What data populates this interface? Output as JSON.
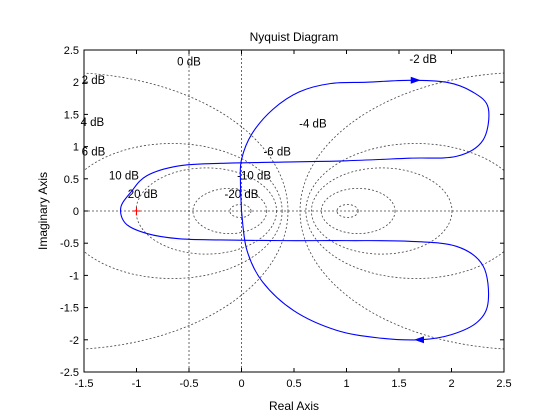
{
  "chart_data": {
    "type": "line",
    "title": "Nyquist Diagram",
    "xlabel": "Real Axis",
    "ylabel": "Imaginary Axis",
    "xlim": [
      -1.5,
      2.5
    ],
    "ylim": [
      -2.5,
      2.5
    ],
    "xticks": [
      "-1.5",
      "-1",
      "-0.5",
      "0",
      "0.5",
      "1",
      "1.5",
      "2",
      "2.5"
    ],
    "yticks": [
      "2.5",
      "2",
      "1.5",
      "1",
      "0.5",
      "0",
      "-0.5",
      "-1",
      "-1.5",
      "-2",
      "-2.5"
    ],
    "grid": "M-circles (dashed)",
    "critical_point": [
      -1,
      0
    ],
    "db_labels": [
      {
        "text": "0 dB",
        "x": -0.5,
        "y": 2.26
      },
      {
        "text": "2 dB",
        "x": -1.41,
        "y": 1.97
      },
      {
        "text": "4 dB",
        "x": -1.42,
        "y": 1.32
      },
      {
        "text": "6 dB",
        "x": -1.41,
        "y": 0.86
      },
      {
        "text": "10 dB",
        "x": -1.12,
        "y": 0.49
      },
      {
        "text": "20 dB",
        "x": -0.94,
        "y": 0.2
      },
      {
        "text": "-2 dB",
        "x": 1.73,
        "y": 2.3
      },
      {
        "text": "-4 dB",
        "x": 0.68,
        "y": 1.3
      },
      {
        "text": "-6 dB",
        "x": 0.34,
        "y": 0.86
      },
      {
        "text": "-10 dB",
        "x": 0.12,
        "y": 0.49
      },
      {
        "text": "-20 dB",
        "x": 0.0,
        "y": 0.2
      }
    ],
    "series": [
      {
        "color": "#0000ff",
        "points": [
          [
            0.0,
            0.0
          ],
          [
            -0.01,
            0.45
          ],
          [
            0.0,
            0.8
          ],
          [
            0.1,
            1.2
          ],
          [
            0.3,
            1.58
          ],
          [
            0.55,
            1.85
          ],
          [
            0.85,
            1.98
          ],
          [
            1.2,
            2.0
          ],
          [
            1.6,
            2.03
          ],
          [
            1.95,
            2.0
          ],
          [
            2.2,
            1.85
          ],
          [
            2.35,
            1.6
          ],
          [
            2.3,
            1.1
          ],
          [
            2.05,
            0.85
          ],
          [
            1.6,
            0.82
          ],
          [
            1.0,
            0.78
          ],
          [
            0.4,
            0.76
          ],
          [
            -0.2,
            0.74
          ],
          [
            -0.6,
            0.7
          ],
          [
            -0.9,
            0.55
          ],
          [
            -1.05,
            0.3
          ],
          [
            -1.15,
            0.05
          ],
          [
            -1.1,
            -0.2
          ],
          [
            -0.9,
            -0.35
          ],
          [
            -0.6,
            -0.43
          ],
          [
            -0.2,
            -0.45
          ],
          [
            0.4,
            -0.46
          ],
          [
            1.0,
            -0.46
          ],
          [
            1.6,
            -0.47
          ],
          [
            2.05,
            -0.55
          ],
          [
            2.3,
            -0.85
          ],
          [
            2.35,
            -1.4
          ],
          [
            2.25,
            -1.72
          ],
          [
            2.0,
            -1.92
          ],
          [
            1.7,
            -2.0
          ],
          [
            1.3,
            -1.97
          ],
          [
            0.9,
            -1.85
          ],
          [
            0.5,
            -1.55
          ],
          [
            0.2,
            -1.1
          ],
          [
            0.05,
            -0.6
          ],
          [
            0.0,
            0.0
          ]
        ],
        "arrows": [
          {
            "x": 1.65,
            "y": 2.03,
            "direction": "right"
          },
          {
            "x": 1.7,
            "y": -2.0,
            "direction": "left"
          }
        ]
      }
    ]
  }
}
